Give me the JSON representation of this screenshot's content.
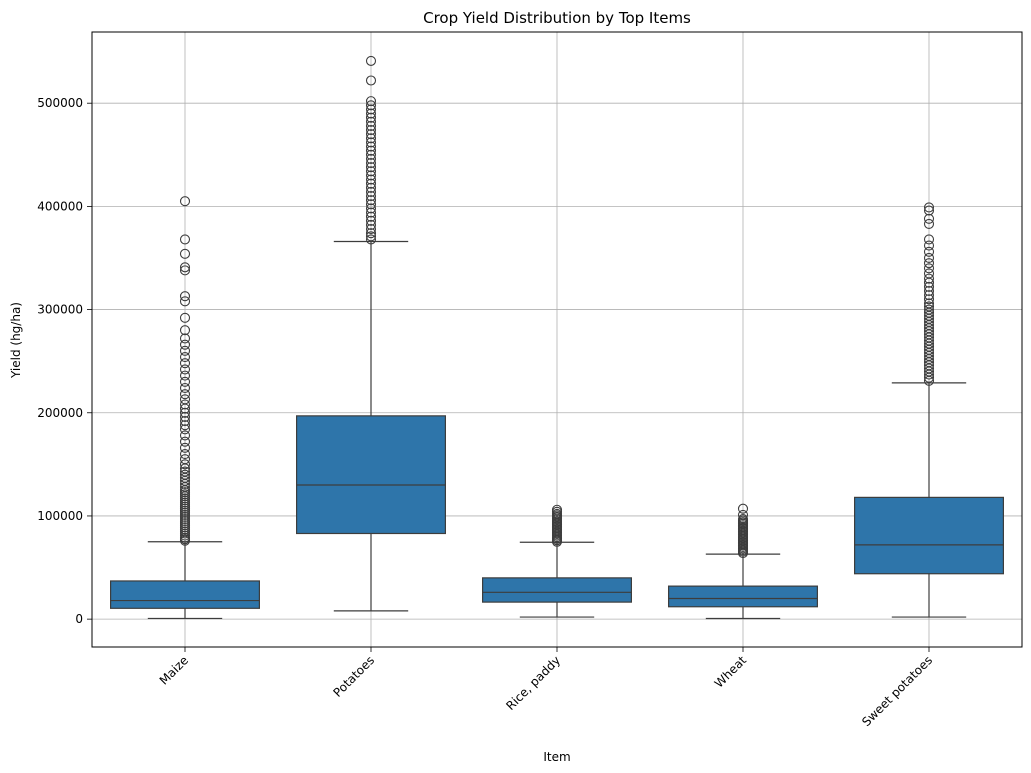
{
  "chart_data": {
    "type": "box",
    "title": "Crop Yield Distribution by Top Items",
    "xlabel": "Item",
    "ylabel": "Yield (hg/ha)",
    "ylim": [
      -27000,
      569000
    ],
    "yticks": [
      0,
      100000,
      200000,
      300000,
      400000,
      500000
    ],
    "grid": true,
    "box_color": "#2e75aa",
    "line_color": "#3d3d3d",
    "categories": [
      "Maize",
      "Potatoes",
      "Rice, paddy",
      "Wheat",
      "Sweet potatoes"
    ],
    "boxes": [
      {
        "category": "Maize",
        "whisker_low": 700,
        "q1": 10500,
        "median": 18000,
        "q3": 37000,
        "whisker_high": 75000,
        "outliers": [
          76000,
          77500,
          79000,
          81000,
          83000,
          85000,
          87000,
          89000,
          91000,
          93000,
          95000,
          97000,
          99000,
          101000,
          103000,
          105000,
          107000,
          109000,
          111000,
          113000,
          115000,
          117000,
          119000,
          121000,
          123000,
          125000,
          128000,
          131000,
          134000,
          137000,
          140000,
          143000,
          146000,
          150000,
          155000,
          160000,
          166000,
          172000,
          178000,
          184000,
          188000,
          192000,
          196000,
          200000,
          204000,
          208000,
          213000,
          218000,
          224000,
          230000,
          236000,
          242000,
          248000,
          254000,
          260000,
          266000,
          272000,
          280000,
          292000,
          308000,
          313000,
          338000,
          341000,
          354000,
          368000,
          405000
        ]
      },
      {
        "category": "Potatoes",
        "whisker_low": 8000,
        "q1": 83000,
        "median": 130000,
        "q3": 197000,
        "whisker_high": 366000,
        "outliers": [
          368000,
          371000,
          374000,
          378000,
          382000,
          386000,
          390000,
          394000,
          398000,
          402000,
          406000,
          410000,
          414000,
          418000,
          422000,
          426000,
          430000,
          434000,
          438000,
          442000,
          446000,
          450000,
          454000,
          458000,
          462000,
          466000,
          470000,
          474000,
          478000,
          482000,
          486000,
          490000,
          494000,
          498000,
          502000,
          522000,
          541000
        ]
      },
      {
        "category": "Rice, paddy",
        "whisker_low": 2000,
        "q1": 16500,
        "median": 26000,
        "q3": 40000,
        "whisker_high": 74500,
        "outliers": [
          75000,
          76500,
          78000,
          79500,
          81000,
          82500,
          84000,
          85500,
          87000,
          88500,
          90000,
          91500,
          93000,
          94500,
          96000,
          97500,
          99000,
          100500,
          102000,
          104000,
          106000
        ]
      },
      {
        "category": "Wheat",
        "whisker_low": 600,
        "q1": 12000,
        "median": 20000,
        "q3": 32000,
        "whisker_high": 63000,
        "outliers": [
          64000,
          65500,
          67000,
          68500,
          70000,
          71500,
          73000,
          74500,
          76000,
          77500,
          79000,
          80500,
          82000,
          83500,
          85000,
          86500,
          88000,
          89500,
          91000,
          92500,
          94000,
          95500,
          97000,
          101000,
          107000
        ]
      },
      {
        "category": "Sweet potatoes",
        "whisker_low": 2000,
        "q1": 44000,
        "median": 72000,
        "q3": 118000,
        "whisker_high": 229000,
        "outliers": [
          231000,
          234000,
          237000,
          240000,
          243000,
          246000,
          249000,
          252000,
          255000,
          258000,
          261000,
          264000,
          267000,
          270000,
          273000,
          276000,
          279000,
          282000,
          285000,
          288000,
          291000,
          294000,
          297000,
          300000,
          303000,
          306000,
          310000,
          314000,
          318000,
          322000,
          326000,
          330000,
          335000,
          340000,
          345000,
          350000,
          356000,
          362000,
          368000,
          383000,
          388000,
          396000,
          399000
        ]
      }
    ]
  }
}
